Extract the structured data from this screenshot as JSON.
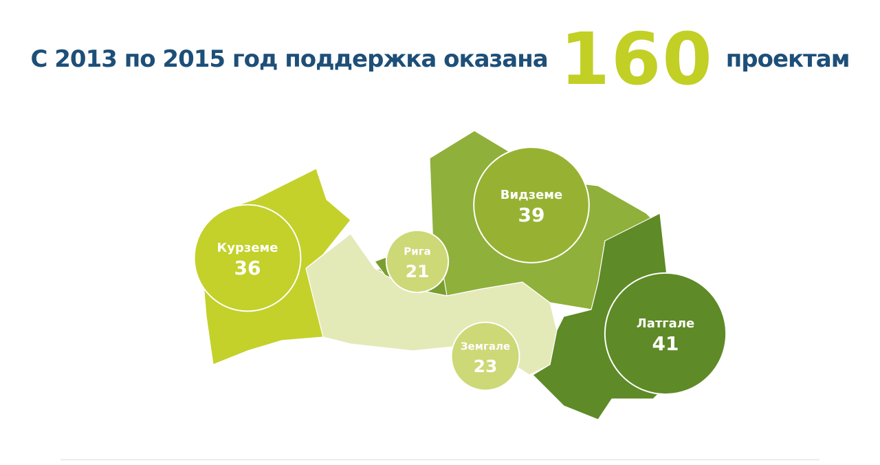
{
  "header": {
    "prefix": "С 2013 по 2015 год поддержка оказана",
    "number": "160",
    "suffix": "проектам"
  },
  "regions": [
    {
      "name": "Курземе",
      "value": 36
    },
    {
      "name": "Рига",
      "value": 21
    },
    {
      "name": "Видземе",
      "value": 39
    },
    {
      "name": "Земгале",
      "value": 23
    },
    {
      "name": "Латгале",
      "value": 41
    }
  ]
}
